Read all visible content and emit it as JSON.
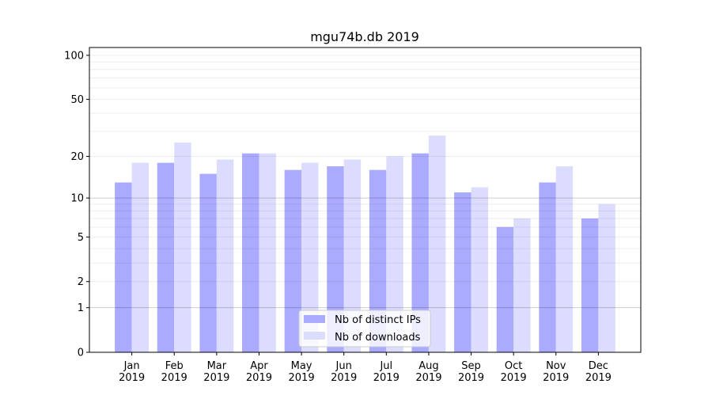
{
  "chart_data": {
    "type": "bar",
    "title": "mgu74b.db 2019",
    "xlabel": "",
    "ylabel": "",
    "yscale": "log(1+y)",
    "ylim": [
      0,
      113
    ],
    "yticks": [
      0,
      1,
      2,
      5,
      10,
      20,
      50,
      100
    ],
    "grid": true,
    "legend_position": "lower center",
    "categories": [
      "Jan\n2019",
      "Feb\n2019",
      "Mar\n2019",
      "Apr\n2019",
      "May\n2019",
      "Jun\n2019",
      "Jul\n2019",
      "Aug\n2019",
      "Sep\n2019",
      "Oct\n2019",
      "Nov\n2019",
      "Dec\n2019"
    ],
    "series": [
      {
        "name": "Nb of distinct IPs",
        "color": "#aaaaff",
        "values": [
          13,
          18,
          15,
          21,
          16,
          17,
          16,
          21,
          11,
          6,
          13,
          7
        ]
      },
      {
        "name": "Nb of downloads",
        "color": "#dcdcff",
        "values": [
          18,
          25,
          19,
          21,
          18,
          19,
          20,
          28,
          12,
          7,
          17,
          9
        ]
      }
    ]
  }
}
